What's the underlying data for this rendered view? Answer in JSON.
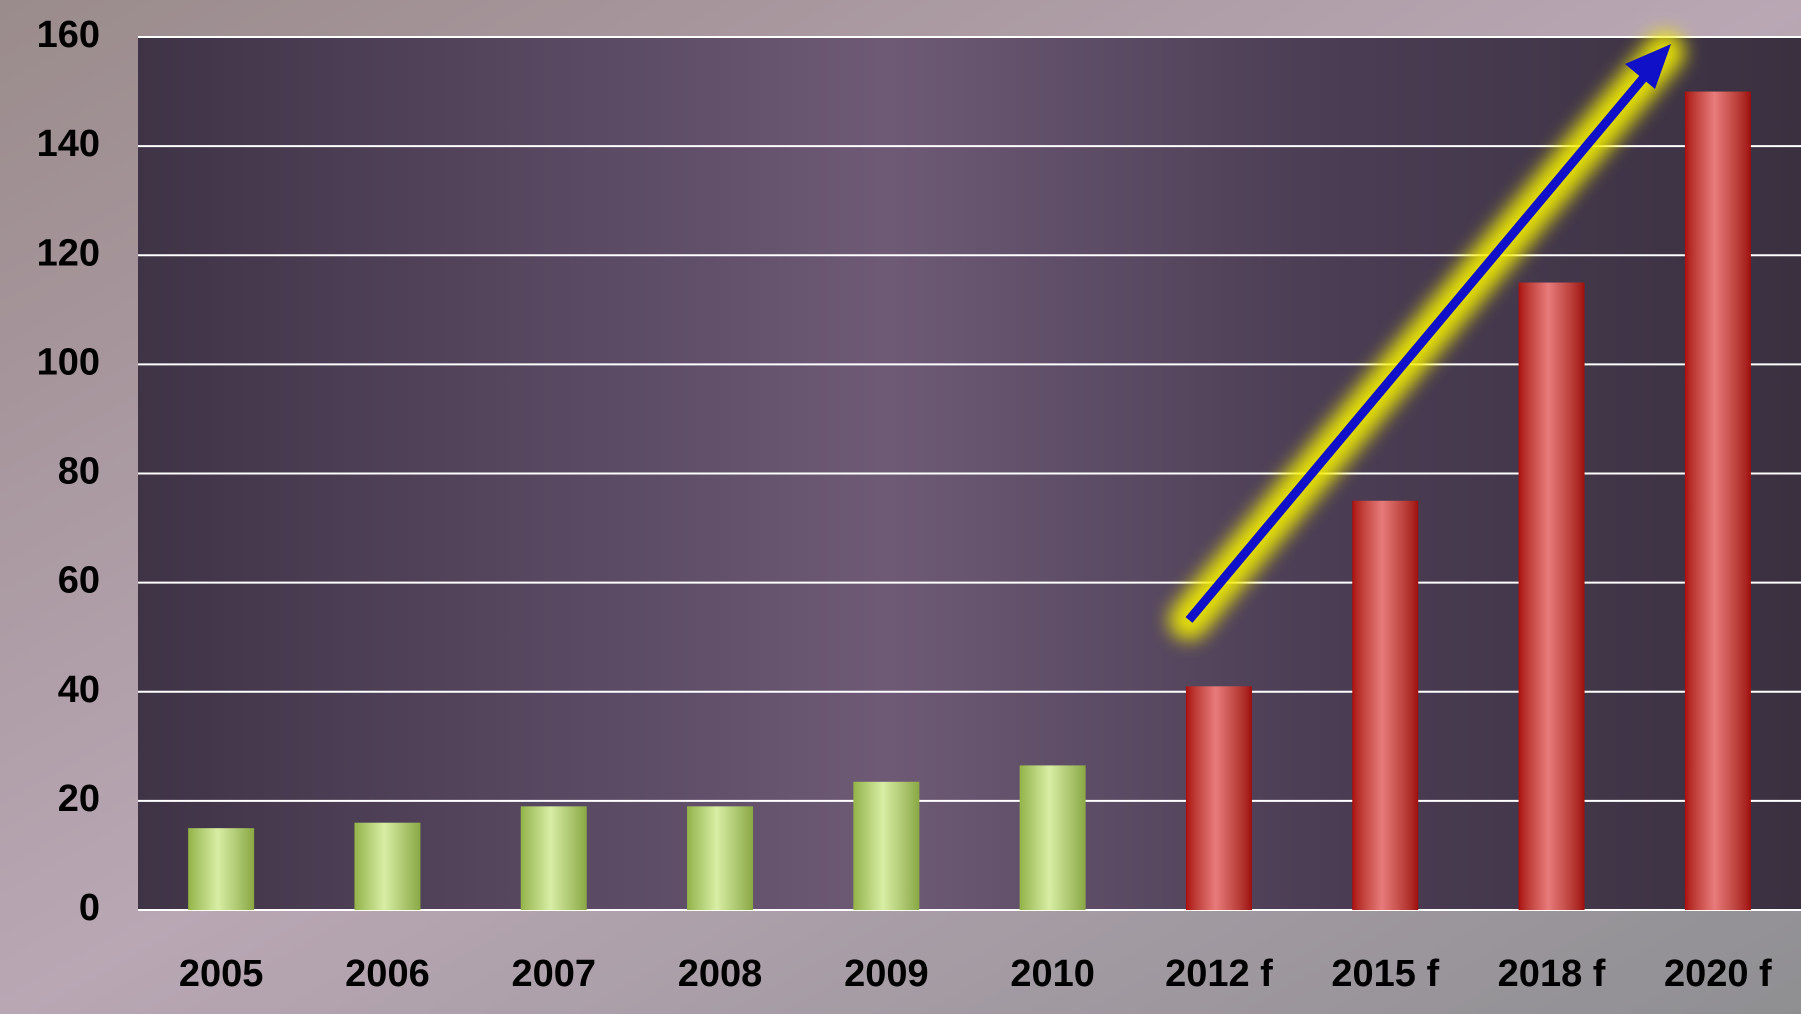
{
  "chart_data": {
    "type": "bar",
    "categories": [
      "2005",
      "2006",
      "2007",
      "2008",
      "2009",
      "2010",
      "2012 f",
      "2015 f",
      "2018 f",
      "2020 f"
    ],
    "values": [
      15,
      16,
      19,
      19,
      23.5,
      26.5,
      41,
      75,
      115,
      150
    ],
    "colors": [
      "#b8e05a",
      "#b8e05a",
      "#b8e05a",
      "#b8e05a",
      "#b8e05a",
      "#b8e05a",
      "#d40f0f",
      "#d40f0f",
      "#d40f0f",
      "#d40f0f"
    ],
    "ylim": [
      0,
      160
    ],
    "yticks": [
      0,
      20,
      40,
      60,
      80,
      100,
      120,
      140,
      160
    ],
    "grid": true
  }
}
